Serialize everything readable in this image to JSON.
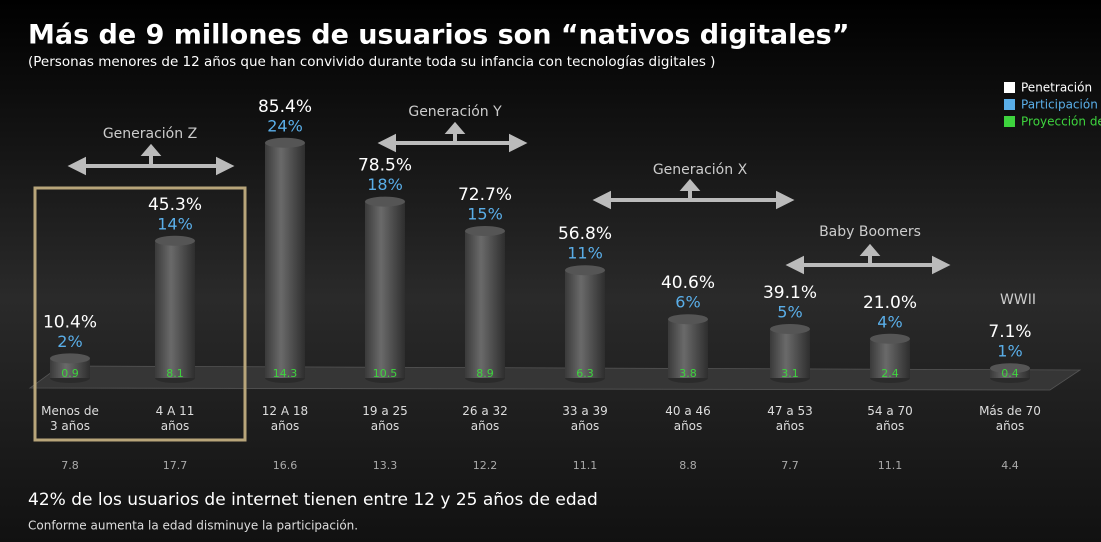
{
  "chart_data": {
    "type": "bar",
    "title": "Más de 9 millones de usuarios son “nativos digitales”",
    "subtitle": "(Personas menores de 12 años que han convivido durante toda su infancia con tecnologías digitales )",
    "categories": [
      "Menos de\n3 años",
      "4 A 11\naños",
      "12 A 18\naños",
      "19 a 25\naños",
      "26 a 32\naños",
      "33 a 39\naños",
      "40 a 46\naños",
      "47 a 53\naños",
      "54 a 70\naños",
      "Más de 70\naños"
    ],
    "series": [
      {
        "name": "Penetración",
        "color": "#ffffff",
        "values": [
          10.4,
          45.3,
          85.4,
          78.5,
          72.7,
          56.8,
          40.6,
          39.1,
          21.0,
          7.1
        ],
        "value_labels": [
          "10.4%",
          "45.3%",
          "85.4%",
          "78.5%",
          "72.7%",
          "56.8%",
          "40.6%",
          "39.1%",
          "21.0%",
          "7.1%"
        ]
      },
      {
        "name": "Participación",
        "color": "#5aaee8",
        "values": [
          2,
          14,
          24,
          18,
          15,
          11,
          6,
          5,
          4,
          1
        ],
        "value_labels": [
          "2%",
          "14%",
          "24%",
          "18%",
          "15%",
          "11%",
          "6%",
          "5%",
          "4%",
          "1%"
        ]
      },
      {
        "name": "Proyección de usuarios",
        "color": "#3ed43e",
        "values": [
          0.9,
          8.1,
          14.3,
          10.5,
          8.9,
          6.3,
          3.8,
          3.1,
          2.4,
          0.4
        ]
      }
    ],
    "footer_values": [
      7.8,
      17.7,
      16.6,
      13.3,
      12.2,
      11.1,
      8.8,
      7.7,
      11.1,
      4.4
    ],
    "annotations": [
      "Generación Z",
      "Generación Y",
      "Generación X",
      "Baby Boomers",
      "WWII"
    ],
    "note": "42% de los usuarios de internet  tienen entre 12 y 25 años de edad",
    "subnote": "Conforme aumenta la edad disminuye la participación."
  }
}
